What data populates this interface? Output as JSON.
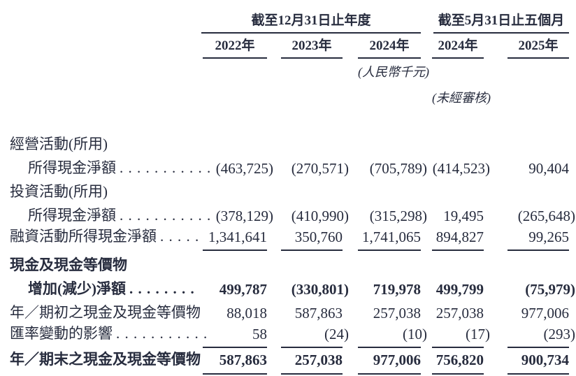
{
  "colors": {
    "text": "#272c3e"
  },
  "header": {
    "group_annual": "截至12月31日止年度",
    "group_interim": "截至5月31日止五個月",
    "columns": [
      "2022年",
      "2023年",
      "2024年",
      "2024年",
      "2025年"
    ],
    "unit_note": "(人民幣千元)",
    "unaudited_note": "(未經審核)"
  },
  "rows": [
    {
      "label": "經營活動(所用)",
      "dots": "",
      "values": [
        "",
        "",
        "",
        "",
        ""
      ]
    },
    {
      "label": "所得現金淨額",
      "dots": ". . . . . . . . . . .",
      "values": [
        "(463,725)",
        "(270,571)",
        "(705,789)",
        "(414,523)",
        "90,404"
      ]
    },
    {
      "label": "投資活動(所用)",
      "dots": "",
      "values": [
        "",
        "",
        "",
        "",
        ""
      ]
    },
    {
      "label": "所得現金淨額",
      "dots": ". . . . . . . . . . .",
      "values": [
        "(378,129)",
        "(410,990)",
        "(315,298)",
        "19,495",
        "(265,648)"
      ]
    },
    {
      "label": "融資活動所得現金淨額",
      "dots": ". . . . .",
      "values": [
        "1,341,641",
        "350,760",
        "1,741,065",
        "894,827",
        "99,265"
      ]
    },
    {
      "label": "現金及現金等價物",
      "dots": "",
      "values": [
        "",
        "",
        "",
        "",
        ""
      ]
    },
    {
      "label": "增加(減少)淨額",
      "dots": ". . . . . . . .",
      "values": [
        "499,787",
        "(330,801)",
        "719,978",
        "499,799",
        "(75,979)"
      ]
    },
    {
      "label": "年／期初之現金及現金等價物",
      "dots": "",
      "values": [
        "88,018",
        "587,863",
        "257,038",
        "257,038",
        "977,006"
      ]
    },
    {
      "label": "匯率變動的影響",
      "dots": ". . . . . . . . . . .",
      "values": [
        "58",
        "(24)",
        "(10)",
        "(17)",
        "(293)"
      ]
    },
    {
      "label": "年／期末之現金及現金等價物",
      "dots": "",
      "values": [
        "587,863",
        "257,038",
        "977,006",
        "756,820",
        "900,734"
      ]
    }
  ]
}
